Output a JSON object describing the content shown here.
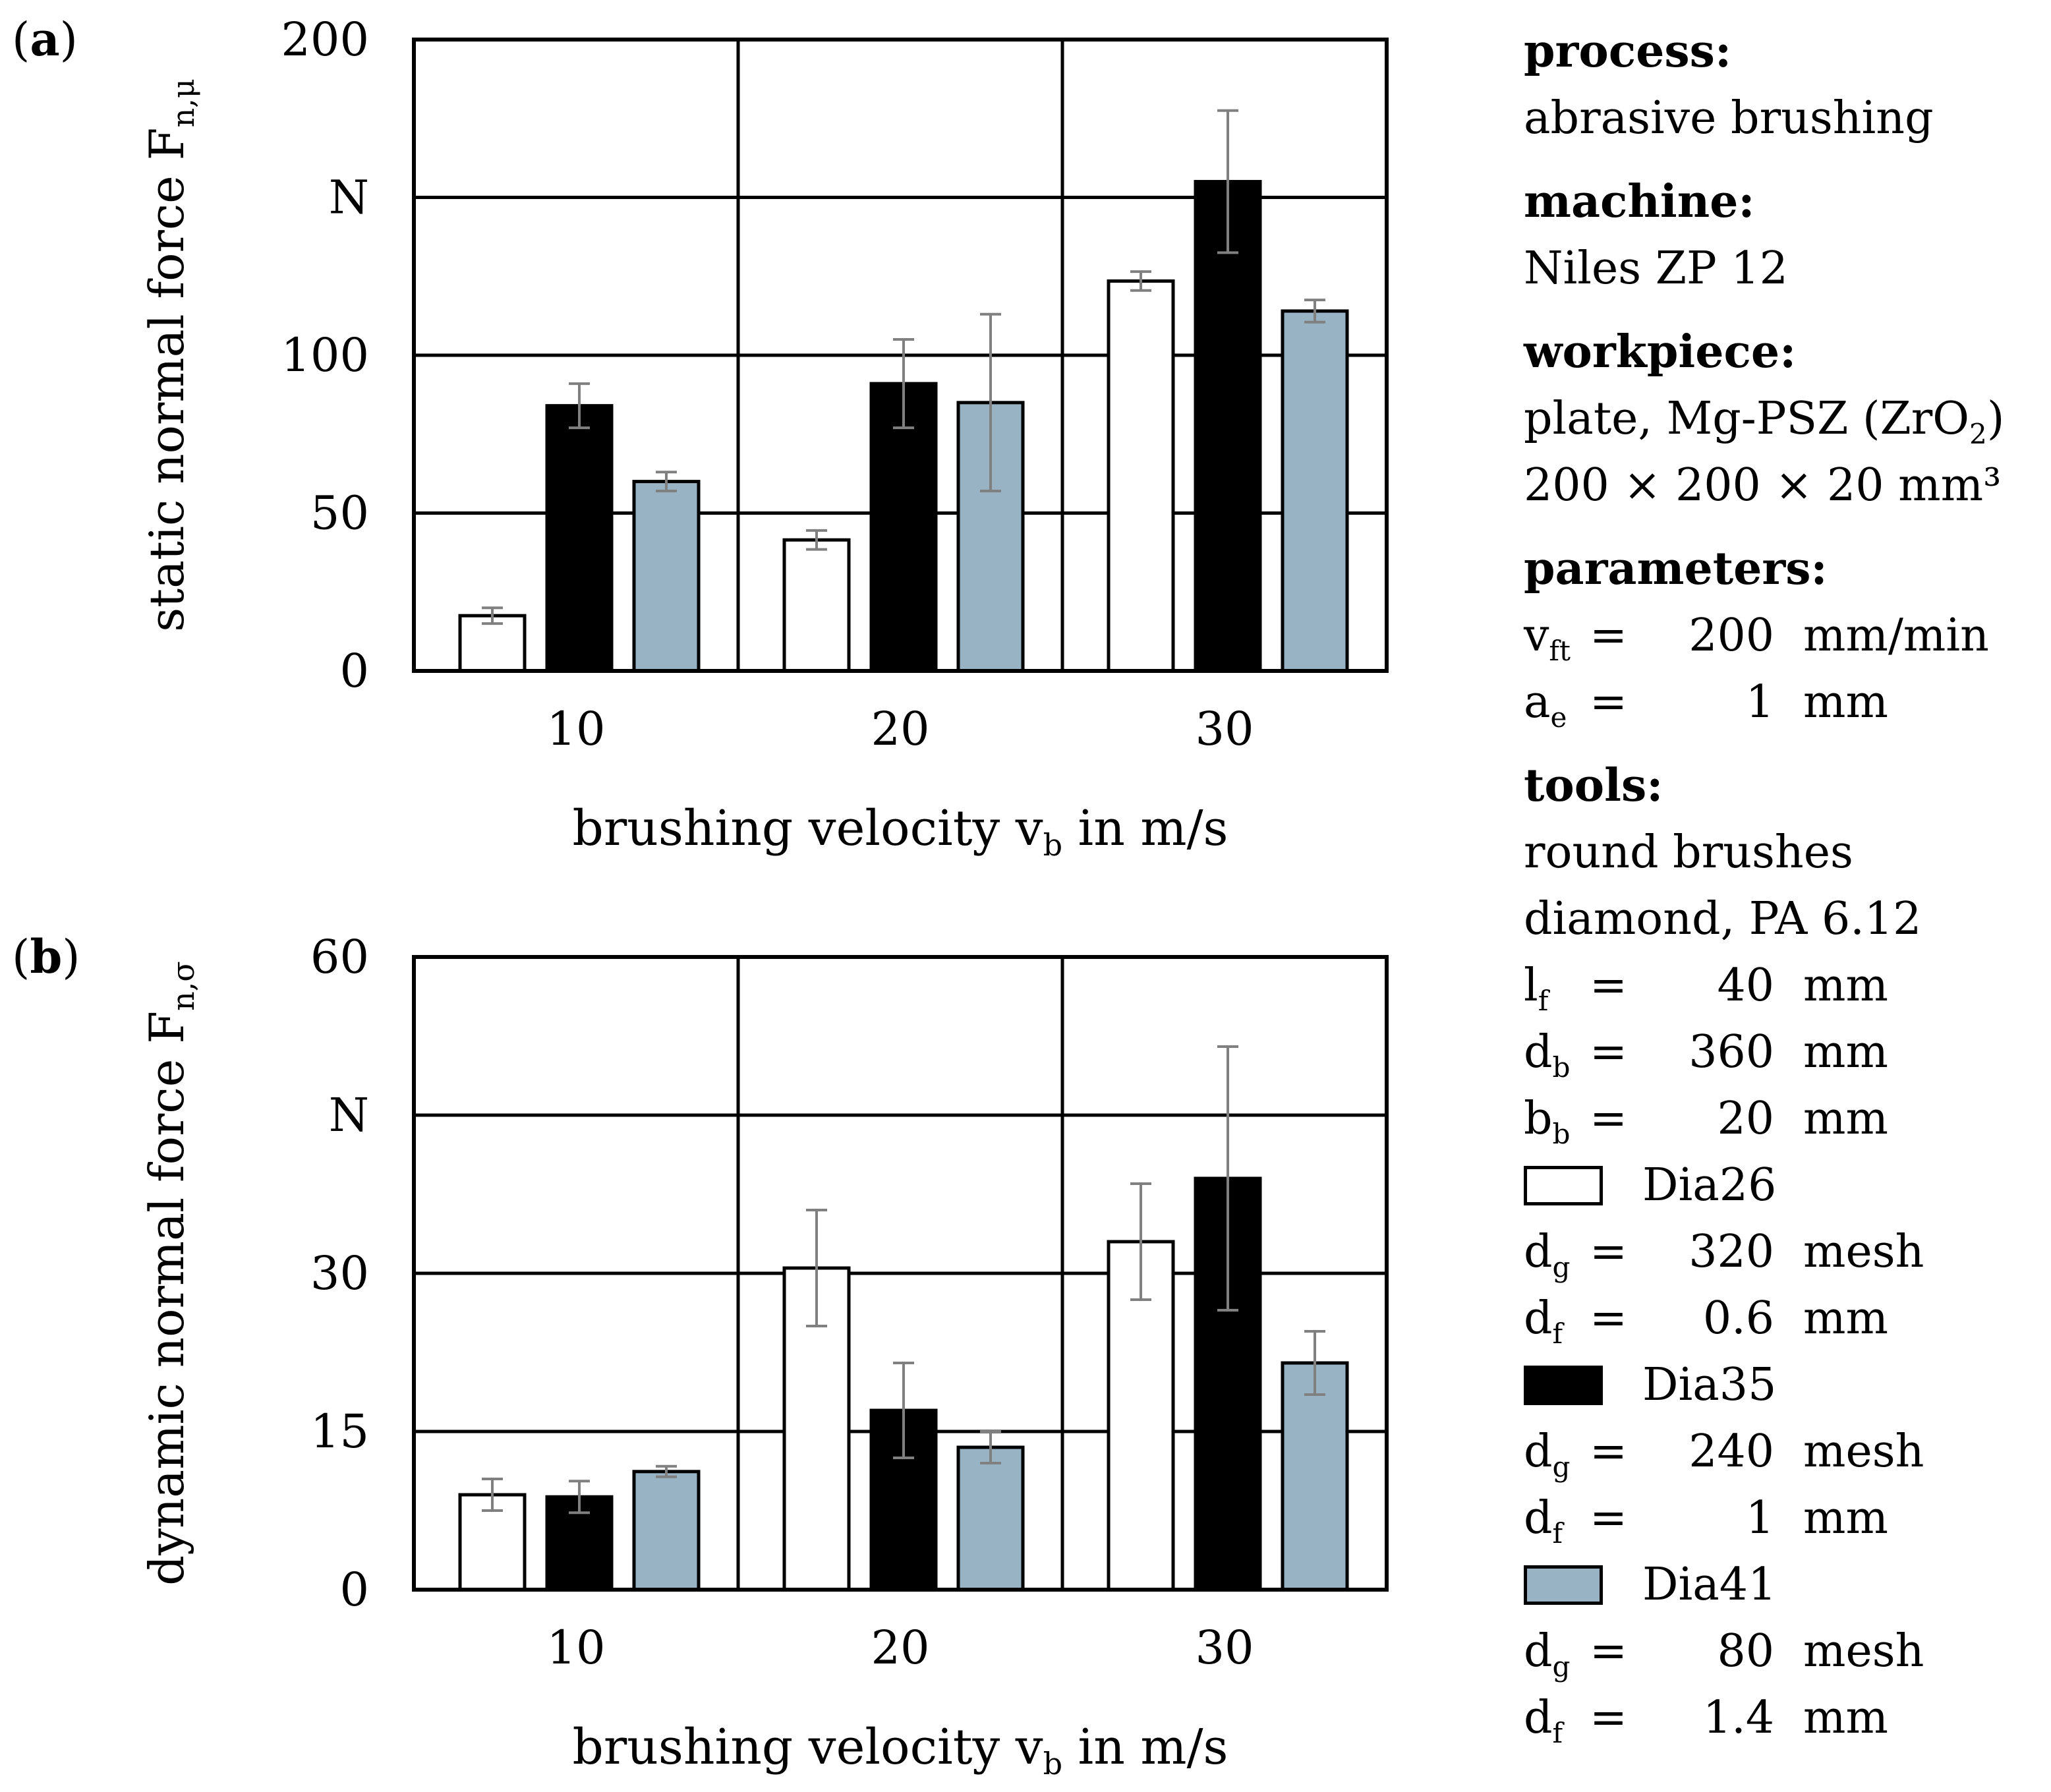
{
  "chart_data": [
    {
      "type": "bar",
      "panel": "(a)",
      "categories": [
        "10",
        "20",
        "30"
      ],
      "series": [
        {
          "name": "Dia26",
          "values": [
            17.5,
            41.5,
            123.5
          ],
          "errors": [
            2.5,
            3,
            3
          ]
        },
        {
          "name": "Dia35",
          "values": [
            84,
            91,
            155
          ],
          "errors": [
            7,
            14,
            22.5
          ]
        },
        {
          "name": "Dia41",
          "values": [
            60,
            85,
            114
          ],
          "errors": [
            3,
            28,
            3.5
          ]
        }
      ],
      "yticks": [
        "0",
        "50",
        "100",
        "N",
        "200"
      ],
      "ylim": [
        0,
        200
      ],
      "ylabel": "static normal force F",
      "ylabel_sub": "n,μ",
      "xlabel": "brushing velocity v",
      "xlabel_sub": "b",
      "xlabel_unit": " in m/s",
      "grid": true
    },
    {
      "type": "bar",
      "panel": "(b)",
      "categories": [
        "10",
        "20",
        "30"
      ],
      "series": [
        {
          "name": "Dia26",
          "values": [
            9,
            30.5,
            33
          ],
          "errors": [
            1.5,
            5.5,
            5.5
          ]
        },
        {
          "name": "Dia35",
          "values": [
            8.8,
            17,
            39
          ],
          "errors": [
            1.5,
            4.5,
            12.5
          ]
        },
        {
          "name": "Dia41",
          "values": [
            11.2,
            13.5,
            21.5
          ],
          "errors": [
            0.5,
            1.5,
            3
          ]
        }
      ],
      "yticks": [
        "0",
        "15",
        "30",
        "N",
        "60"
      ],
      "ylim": [
        0,
        60
      ],
      "ylabel": "dynamic normal force F",
      "ylabel_sub": "n,σ",
      "xlabel": "brushing velocity v",
      "xlabel_sub": "b",
      "xlabel_unit": " in m/s",
      "grid": true
    }
  ],
  "colors": {
    "Dia26": "#ffffff",
    "Dia35": "#000000",
    "Dia41": "#98b4c4",
    "error_bar": "#808080"
  },
  "side": {
    "process_label": "process:",
    "process_value": "abrasive brushing",
    "machine_label": "machine:",
    "machine_value": "Niles ZP 12",
    "workpiece_label": "workpiece:",
    "workpiece_value": "plate, Mg-PSZ (ZrO",
    "workpiece_value_sub": "2",
    "workpiece_value_end": ")",
    "workpiece_dims": "200 × 200 × 20 mm³",
    "parameters_label": "parameters:",
    "parameters": [
      {
        "sym": "v",
        "sub": "ft",
        "eq": "=",
        "val": "200",
        "unit": "mm/min"
      },
      {
        "sym": "a",
        "sub": "e",
        "eq": "=",
        "val": "1",
        "unit": "mm"
      }
    ],
    "tools_label": "tools:",
    "tools_line1": "round brushes",
    "tools_line2": "diamond, PA 6.12",
    "tool_params": [
      {
        "sym": "l",
        "sub": "f",
        "eq": "=",
        "val": "40",
        "unit": "mm"
      },
      {
        "sym": "d",
        "sub": "b",
        "eq": "=",
        "val": "360",
        "unit": "mm"
      },
      {
        "sym": "b",
        "sub": "b",
        "eq": "=",
        "val": "20",
        "unit": "mm"
      }
    ],
    "legend": [
      {
        "name": "Dia26",
        "params": [
          {
            "sym": "d",
            "sub": "g",
            "eq": "=",
            "val": "320",
            "unit": "mesh"
          },
          {
            "sym": "d",
            "sub": "f",
            "eq": "=",
            "val": "0.6",
            "unit": "mm"
          }
        ]
      },
      {
        "name": "Dia35",
        "params": [
          {
            "sym": "d",
            "sub": "g",
            "eq": "=",
            "val": "240",
            "unit": "mesh"
          },
          {
            "sym": "d",
            "sub": "f",
            "eq": "=",
            "val": "1",
            "unit": "mm"
          }
        ]
      },
      {
        "name": "Dia41",
        "params": [
          {
            "sym": "d",
            "sub": "g",
            "eq": "=",
            "val": "80",
            "unit": "mesh"
          },
          {
            "sym": "d",
            "sub": "f",
            "eq": "=",
            "val": "1.4",
            "unit": "mm"
          }
        ]
      }
    ]
  }
}
